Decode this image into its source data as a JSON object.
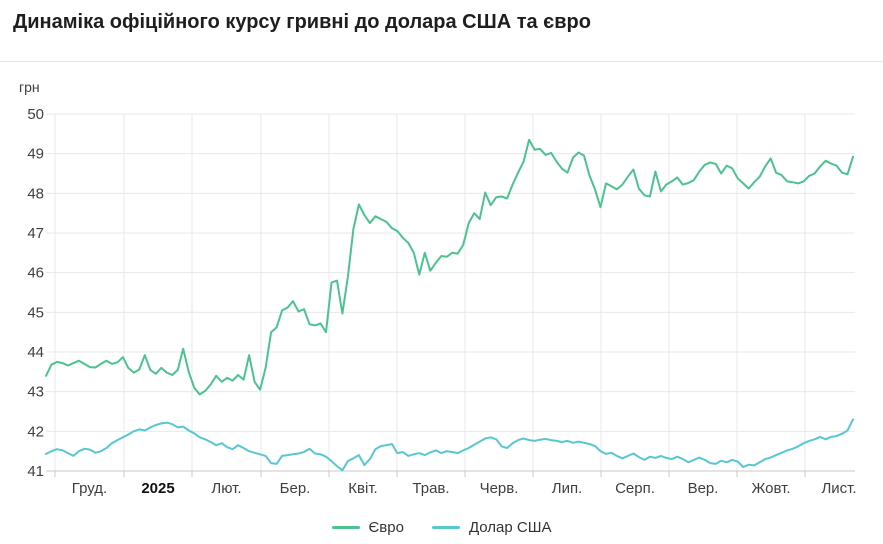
{
  "header": {
    "title": "Динаміка офіційного курсу гривні до долара США та євро"
  },
  "colors": {
    "grid": "#e8e8e8",
    "axis": "#c9c9c9",
    "tick_text": "#3f3f3f",
    "strong_tick_text": "#111111",
    "title_text": "#1e1e1e"
  },
  "chart_data": {
    "type": "line",
    "title": "Динаміка офіційного курсу гривні до долара США та євро",
    "xlabel": "",
    "ylabel": "грн",
    "ylim": [
      41,
      50
    ],
    "y_ticks": [
      50,
      49,
      48,
      47,
      46,
      45,
      44,
      43,
      42,
      41
    ],
    "grid": true,
    "legend_position": "bottom",
    "x_tick_labels": [
      {
        "label": "Груд.",
        "strong": false
      },
      {
        "label": "2025",
        "strong": true
      },
      {
        "label": "Лют.",
        "strong": false
      },
      {
        "label": "Бер.",
        "strong": false
      },
      {
        "label": "Квіт.",
        "strong": false
      },
      {
        "label": "Трав.",
        "strong": false
      },
      {
        "label": "Черв.",
        "strong": false
      },
      {
        "label": "Лип.",
        "strong": false
      },
      {
        "label": "Серп.",
        "strong": false
      },
      {
        "label": "Вер.",
        "strong": false
      },
      {
        "label": "Жовт.",
        "strong": false
      },
      {
        "label": "Лист.",
        "strong": false
      }
    ],
    "series": [
      {
        "name": "Євро",
        "color": "#4cc28f",
        "values": [
          43.4,
          43.68,
          43.75,
          43.72,
          43.66,
          43.72,
          43.78,
          43.7,
          43.62,
          43.61,
          43.7,
          43.78,
          43.7,
          43.74,
          43.87,
          43.6,
          43.48,
          43.56,
          43.92,
          43.55,
          43.45,
          43.6,
          43.48,
          43.42,
          43.55,
          44.08,
          43.5,
          43.1,
          42.93,
          43.02,
          43.18,
          43.4,
          43.25,
          43.35,
          43.28,
          43.42,
          43.3,
          43.92,
          43.25,
          43.05,
          43.6,
          44.5,
          44.62,
          45.05,
          45.12,
          45.28,
          45.02,
          45.08,
          44.7,
          44.67,
          44.72,
          44.5,
          45.75,
          45.8,
          44.97,
          45.9,
          47.1,
          47.72,
          47.45,
          47.25,
          47.42,
          47.35,
          47.28,
          47.12,
          47.05,
          46.88,
          46.75,
          46.5,
          45.95,
          46.5,
          46.05,
          46.25,
          46.42,
          46.4,
          46.5,
          46.48,
          46.7,
          47.25,
          47.5,
          47.35,
          48.02,
          47.7,
          47.9,
          47.92,
          47.87,
          48.22,
          48.52,
          48.8,
          49.35,
          49.1,
          49.12,
          48.97,
          49.02,
          48.8,
          48.62,
          48.52,
          48.9,
          49.03,
          48.95,
          48.45,
          48.1,
          47.65,
          48.25,
          48.18,
          48.1,
          48.22,
          48.42,
          48.6,
          48.12,
          47.95,
          47.92,
          48.55,
          48.05,
          48.22,
          48.3,
          48.4,
          48.22,
          48.26,
          48.33,
          48.55,
          48.72,
          48.78,
          48.74,
          48.5,
          48.7,
          48.63,
          48.38,
          48.25,
          48.12,
          48.28,
          48.42,
          48.68,
          48.88,
          48.52,
          48.46,
          48.3,
          48.28,
          48.25,
          48.3,
          48.44,
          48.5,
          48.68,
          48.82,
          48.75,
          48.7,
          48.52,
          48.48,
          48.92
        ]
      },
      {
        "name": "Долар США",
        "color": "#58c7d1",
        "values": [
          41.43,
          41.5,
          41.55,
          41.52,
          41.45,
          41.38,
          41.5,
          41.56,
          41.54,
          41.46,
          41.5,
          41.58,
          41.7,
          41.78,
          41.85,
          41.92,
          42.0,
          42.05,
          42.02,
          42.1,
          42.16,
          42.2,
          42.22,
          42.18,
          42.1,
          42.12,
          42.02,
          41.95,
          41.85,
          41.8,
          41.73,
          41.65,
          41.7,
          41.6,
          41.55,
          41.65,
          41.58,
          41.5,
          41.46,
          41.42,
          41.38,
          41.2,
          41.18,
          41.38,
          41.4,
          41.42,
          41.44,
          41.48,
          41.56,
          41.44,
          41.42,
          41.36,
          41.25,
          41.12,
          41.02,
          41.25,
          41.32,
          41.4,
          41.15,
          41.3,
          41.55,
          41.63,
          41.65,
          41.68,
          41.45,
          41.48,
          41.38,
          41.42,
          41.45,
          41.4,
          41.47,
          41.52,
          41.45,
          41.5,
          41.48,
          41.45,
          41.52,
          41.58,
          41.66,
          41.74,
          41.82,
          41.85,
          41.8,
          41.62,
          41.58,
          41.7,
          41.78,
          41.82,
          41.78,
          41.76,
          41.79,
          41.81,
          41.78,
          41.76,
          41.73,
          41.76,
          41.71,
          41.74,
          41.71,
          41.68,
          41.63,
          41.5,
          41.43,
          41.46,
          41.38,
          41.32,
          41.38,
          41.44,
          41.35,
          41.28,
          41.36,
          41.33,
          41.38,
          41.33,
          41.3,
          41.36,
          41.3,
          41.22,
          41.28,
          41.34,
          41.28,
          41.2,
          41.18,
          41.26,
          41.22,
          41.28,
          41.24,
          41.1,
          41.16,
          41.14,
          41.22,
          41.3,
          41.34,
          41.4,
          41.46,
          41.52,
          41.56,
          41.62,
          41.7,
          41.76,
          41.8,
          41.86,
          41.8,
          41.86,
          41.88,
          41.94,
          42.02,
          42.3
        ]
      }
    ]
  }
}
